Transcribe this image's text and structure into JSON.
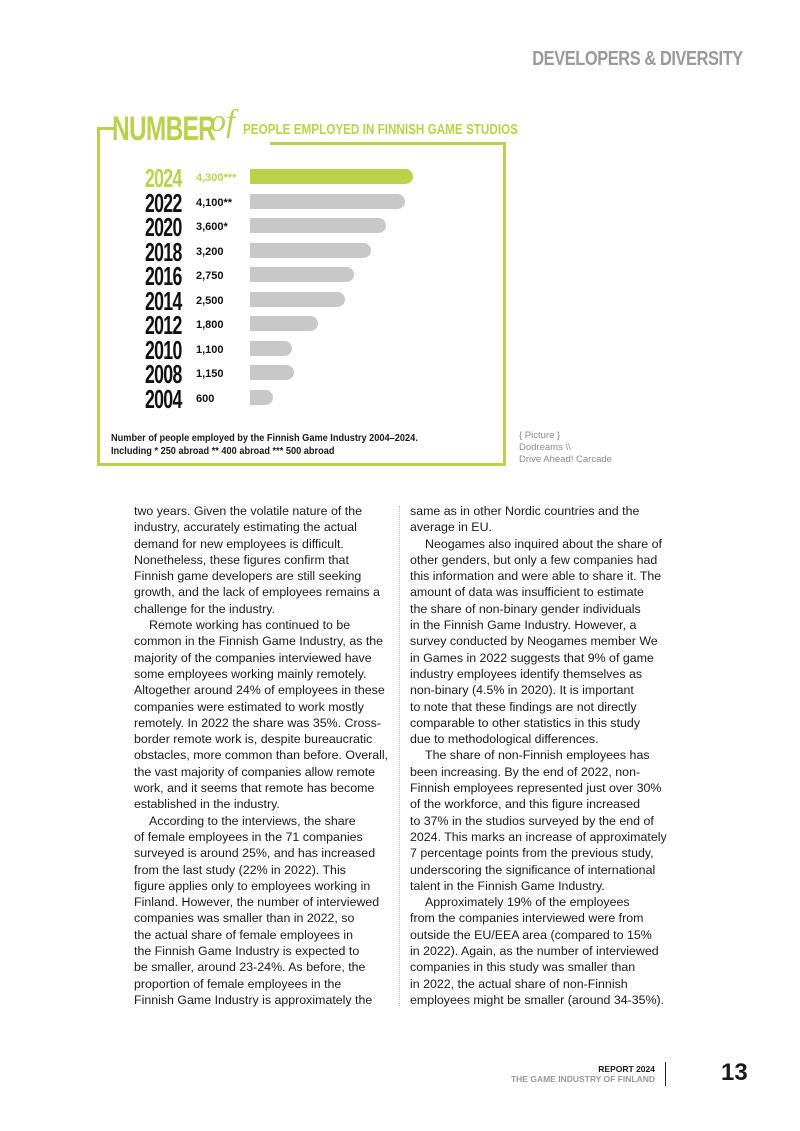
{
  "header": {
    "section": "DEVELOPERS & DIVERSITY"
  },
  "chart_title": {
    "big": "NUMBER",
    "of": "of",
    "small": "PEOPLE EMPLOYED IN FINNISH GAME STUDIOS"
  },
  "chart_data": {
    "type": "bar",
    "orientation": "horizontal",
    "categories": [
      "2024",
      "2022",
      "2020",
      "2018",
      "2016",
      "2014",
      "2012",
      "2010",
      "2008",
      "2004"
    ],
    "values": [
      4300,
      4100,
      3600,
      3200,
      2750,
      2500,
      1800,
      1100,
      1150,
      600
    ],
    "labels": [
      "4,300***",
      "4,100**",
      "3,600*",
      "3,200",
      "2,750",
      "2,500",
      "1,800",
      "1,100",
      "1,150",
      "600"
    ],
    "colors": {
      "highlight": "#bcd14b",
      "default": "#c8c8c8"
    },
    "highlight_category": "2024",
    "xlim": [
      0,
      4300
    ]
  },
  "caption": [
    "Number of people employed by the Finnish Game Industry 2004–2024.",
    "Including * 250 abroad ** 400 abroad *** 500 abroad"
  ],
  "credit": [
    "{ Picture }",
    "Dodreams \\\\",
    "Drive Ahead! Carcade"
  ],
  "columns": [
    [
      {
        "i": 0,
        "t": "two years. Given the volatile nature of the"
      },
      {
        "i": 0,
        "t": "industry, accurately estimating the actual"
      },
      {
        "i": 0,
        "t": "demand for new employees is difficult."
      },
      {
        "i": 0,
        "t": "Nonetheless, these figures confirm that"
      },
      {
        "i": 0,
        "t": "Finnish game developers are still seeking"
      },
      {
        "i": 0,
        "t": "growth, and the lack of employees remains a"
      },
      {
        "i": 0,
        "t": "challenge for the industry."
      },
      {
        "i": 1,
        "t": "Remote working has continued to be"
      },
      {
        "i": 0,
        "t": "common in the Finnish Game Industry, as the"
      },
      {
        "i": 0,
        "t": "majority of the companies interviewed have"
      },
      {
        "i": 0,
        "t": "some employees working mainly remotely."
      },
      {
        "i": 0,
        "t": "Altogether around 24% of employees in these"
      },
      {
        "i": 0,
        "t": "companies were estimated to work mostly"
      },
      {
        "i": 0,
        "t": "remotely. In 2022 the share was 35%. Cross-"
      },
      {
        "i": 0,
        "t": "border remote work is, despite bureaucratic"
      },
      {
        "i": 0,
        "t": "obstacles, more common than before. Overall,"
      },
      {
        "i": 0,
        "t": "the vast majority of companies allow remote"
      },
      {
        "i": 0,
        "t": "work, and it seems that remote has become"
      },
      {
        "i": 0,
        "t": "established in the industry."
      },
      {
        "i": 1,
        "t": "According to the interviews, the share"
      },
      {
        "i": 0,
        "t": "of female employees in the 71 companies"
      },
      {
        "i": 0,
        "t": "surveyed is around 25%, and has increased"
      },
      {
        "i": 0,
        "t": "from the last study (22% in 2022). This"
      },
      {
        "i": 0,
        "t": "figure applies only to employees working in"
      },
      {
        "i": 0,
        "t": "Finland. However, the number of interviewed"
      },
      {
        "i": 0,
        "t": "companies was smaller than in 2022, so"
      },
      {
        "i": 0,
        "t": "the actual share of female employees in"
      },
      {
        "i": 0,
        "t": "the Finnish Game Industry is expected to"
      },
      {
        "i": 0,
        "t": "be smaller, around 23-24%. As before, the"
      },
      {
        "i": 0,
        "t": "proportion of female employees in the"
      },
      {
        "i": 0,
        "t": "Finnish Game Industry is approximately the"
      }
    ],
    [
      {
        "i": 0,
        "t": "same as in other Nordic countries and the"
      },
      {
        "i": 0,
        "t": "average in EU."
      },
      {
        "i": 1,
        "t": "Neogames also inquired about the share of"
      },
      {
        "i": 0,
        "t": "other genders, but only a few companies had"
      },
      {
        "i": 0,
        "t": "this information and were able to share it. The"
      },
      {
        "i": 0,
        "t": "amount of data was insufficient to estimate"
      },
      {
        "i": 0,
        "t": "the share of non-binary gender individuals"
      },
      {
        "i": 0,
        "t": "in the Finnish Game Industry. However, a"
      },
      {
        "i": 0,
        "t": "survey conducted by Neogames member We"
      },
      {
        "i": 0,
        "t": "in Games in 2022 suggests that 9% of game"
      },
      {
        "i": 0,
        "t": "industry employees identify themselves as"
      },
      {
        "i": 0,
        "t": "non-binary (4.5% in 2020). It is important"
      },
      {
        "i": 0,
        "t": "to note that these findings are not directly"
      },
      {
        "i": 0,
        "t": "comparable to other statistics in this study"
      },
      {
        "i": 0,
        "t": "due to methodological differences."
      },
      {
        "i": 1,
        "t": "The share of non-Finnish employees has"
      },
      {
        "i": 0,
        "t": "been increasing. By the end of 2022, non-"
      },
      {
        "i": 0,
        "t": "Finnish employees represented just over 30%"
      },
      {
        "i": 0,
        "t": "of the workforce, and this figure increased"
      },
      {
        "i": 0,
        "t": "to 37% in the studios surveyed by the end of"
      },
      {
        "i": 0,
        "t": "2024. This marks an increase of approximately"
      },
      {
        "i": 0,
        "t": "7 percentage points from the previous study,"
      },
      {
        "i": 0,
        "t": "underscoring the significance of international"
      },
      {
        "i": 0,
        "t": "talent in the Finnish Game Industry."
      },
      {
        "i": 1,
        "t": "Approximately 19% of the employees"
      },
      {
        "i": 0,
        "t": "from the companies interviewed were from"
      },
      {
        "i": 0,
        "t": "outside the EU/EEA area (compared to 15%"
      },
      {
        "i": 0,
        "t": "in 2022). Again, as the number of interviewed"
      },
      {
        "i": 0,
        "t": "companies in this study was smaller than"
      },
      {
        "i": 0,
        "t": "in 2022, the actual share of non-Finnish"
      },
      {
        "i": 0,
        "t": "employees might be smaller (around 34-35%)."
      }
    ]
  ],
  "footer": {
    "report": "REPORT 2024",
    "publication": "THE GAME INDUSTRY OF FINLAND",
    "page_number": "13"
  }
}
